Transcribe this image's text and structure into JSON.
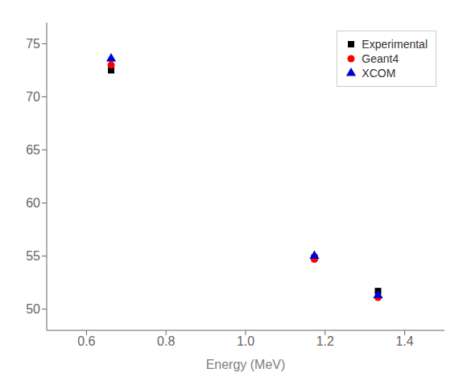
{
  "chart_data": {
    "type": "scatter",
    "xlabel": "Energy (MeV)",
    "x": [
      0.662,
      1.173,
      1.333
    ],
    "xlim": [
      0.5,
      1.5
    ],
    "ylim": [
      48,
      77
    ],
    "xticks": [
      0.6,
      0.8,
      {
        "value": 1.0,
        "label": "1.0"
      },
      1.2,
      1.4
    ],
    "yticks": [
      50,
      55,
      60,
      65,
      70,
      75
    ],
    "legend": "upper right",
    "series": [
      {
        "name": "Experimental",
        "color": "#000000",
        "marker": "square",
        "values": [
          72.5,
          54.85,
          51.7
        ]
      },
      {
        "name": "Geant4",
        "color": "#ff0000",
        "marker": "circle",
        "values": [
          73.0,
          54.7,
          51.1
        ]
      },
      {
        "name": "XCOM",
        "color": "#0000cc",
        "marker": "triangle",
        "values": [
          73.6,
          55.0,
          51.3
        ]
      }
    ]
  }
}
